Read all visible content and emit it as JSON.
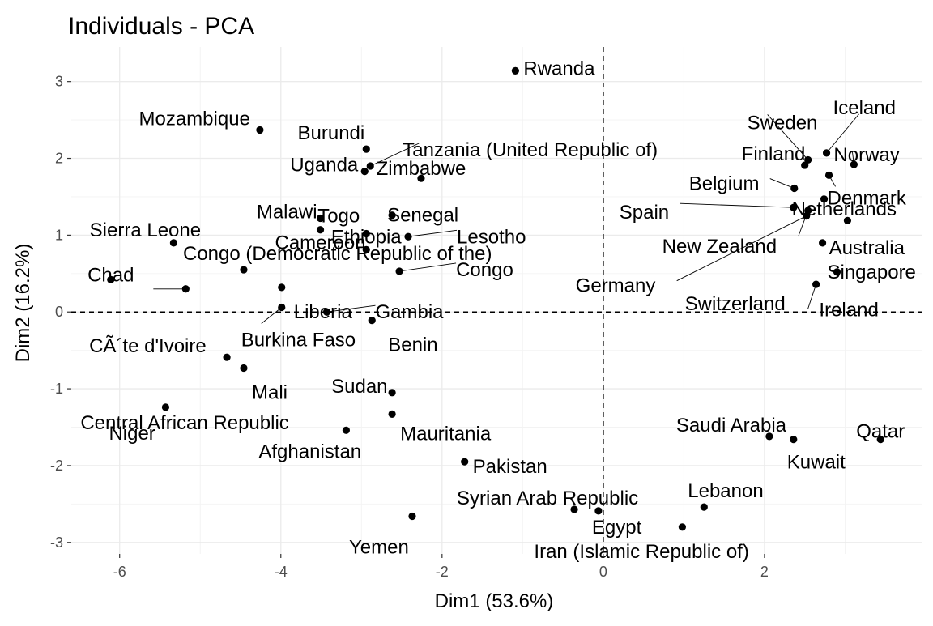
{
  "chart_data": {
    "type": "scatter",
    "title": "Individuals - PCA",
    "xlabel": "Dim1 (53.6%)",
    "ylabel": "Dim2 (16.2%)",
    "xlim": [
      -6.6,
      3.95
    ],
    "ylim": [
      -3.15,
      3.45
    ],
    "xticks": [
      -6,
      -4,
      -2,
      0,
      2
    ],
    "yticks": [
      -3,
      -2,
      -1,
      0,
      1,
      2,
      3
    ],
    "grid": true,
    "reference_lines": {
      "x": 0,
      "y": 0,
      "style": "dashed"
    },
    "point_color": "#000000",
    "points": [
      {
        "label": "Rwanda",
        "x": -1.09,
        "y": 3.14
      },
      {
        "label": "Mozambique",
        "x": -4.26,
        "y": 2.37
      },
      {
        "label": "Burundi",
        "x": -2.94,
        "y": 2.12
      },
      {
        "label": "Tanzania (United Republic of)",
        "x": -2.89,
        "y": 1.9
      },
      {
        "label": "Uganda",
        "x": -2.96,
        "y": 1.83
      },
      {
        "label": "Zimbabwe",
        "x": -2.26,
        "y": 1.74
      },
      {
        "label": "Malawi",
        "x": -3.51,
        "y": 1.22
      },
      {
        "label": "Togo",
        "x": -2.94,
        "y": 1.02
      },
      {
        "label": "Senegal",
        "x": -2.62,
        "y": 1.26
      },
      {
        "label": "Sierra Leone",
        "x": -5.33,
        "y": 0.9
      },
      {
        "label": "Cameroon",
        "x": -3.51,
        "y": 1.07
      },
      {
        "label": "Lesotho",
        "x": -2.42,
        "y": 0.98
      },
      {
        "label": "Chad",
        "x": -6.11,
        "y": 0.42
      },
      {
        "label": "Congo (Democratic Republic of the)",
        "x": -4.46,
        "y": 0.55
      },
      {
        "label": "Ethiopia",
        "x": -2.94,
        "y": 0.81
      },
      {
        "label": "Congo",
        "x": -2.53,
        "y": 0.53
      },
      {
        "label": "Liberia",
        "x": -3.99,
        "y": 0.32
      },
      {
        "label": "Central African Republic",
        "x": -5.18,
        "y": 0.3
      },
      {
        "label": "Gambia",
        "x": -3.43,
        "y": 0.0
      },
      {
        "label": "Burkina Faso",
        "x": -3.99,
        "y": 0.06
      },
      {
        "label": "Benin",
        "x": -2.87,
        "y": -0.11
      },
      {
        "label": "CÃ´te d'Ivoire",
        "x": -4.67,
        "y": -0.59
      },
      {
        "label": "Mali",
        "x": -4.46,
        "y": -0.73
      },
      {
        "label": "Sudan",
        "x": -2.62,
        "y": -1.05
      },
      {
        "label": "Niger",
        "x": -5.43,
        "y": -1.24
      },
      {
        "label": "Mauritania",
        "x": -2.62,
        "y": -1.33
      },
      {
        "label": "Afghanistan",
        "x": -3.19,
        "y": -1.54
      },
      {
        "label": "Pakistan",
        "x": -1.72,
        "y": -1.95
      },
      {
        "label": "Yemen",
        "x": -2.37,
        "y": -2.66
      },
      {
        "label": "Syrian Arab Republic",
        "x": -0.36,
        "y": -2.57
      },
      {
        "label": "Egypt",
        "x": -0.06,
        "y": -2.59
      },
      {
        "label": "Iran (Islamic Republic of)",
        "x": 0.98,
        "y": -2.8
      },
      {
        "label": "Lebanon",
        "x": 1.25,
        "y": -2.54
      },
      {
        "label": "Saudi Arabia",
        "x": 2.06,
        "y": -1.62
      },
      {
        "label": "Kuwait",
        "x": 2.36,
        "y": -1.66
      },
      {
        "label": "Qatar",
        "x": 3.44,
        "y": -1.66
      },
      {
        "label": "Sweden",
        "x": 2.54,
        "y": 1.98
      },
      {
        "label": "Iceland",
        "x": 2.77,
        "y": 2.07
      },
      {
        "label": "Finland",
        "x": 2.5,
        "y": 1.91
      },
      {
        "label": "Norway",
        "x": 3.11,
        "y": 1.92
      },
      {
        "label": "Denmark",
        "x": 2.8,
        "y": 1.78
      },
      {
        "label": "Belgium",
        "x": 2.37,
        "y": 1.61
      },
      {
        "label": "Netherlands",
        "x": 2.74,
        "y": 1.47
      },
      {
        "label": "Spain",
        "x": 2.36,
        "y": 1.36
      },
      {
        "label": "New Zealand",
        "x": 2.54,
        "y": 1.32
      },
      {
        "label": "Germany",
        "x": 2.52,
        "y": 1.25
      },
      {
        "label": "Australia",
        "x": 2.72,
        "y": 0.9
      },
      {
        "label": "Singapore",
        "x": 2.9,
        "y": 0.52
      },
      {
        "label": "Switzerland",
        "x": 2.64,
        "y": 0.36
      },
      {
        "label": "Ireland",
        "x": 3.03,
        "y": 1.19
      }
    ]
  }
}
